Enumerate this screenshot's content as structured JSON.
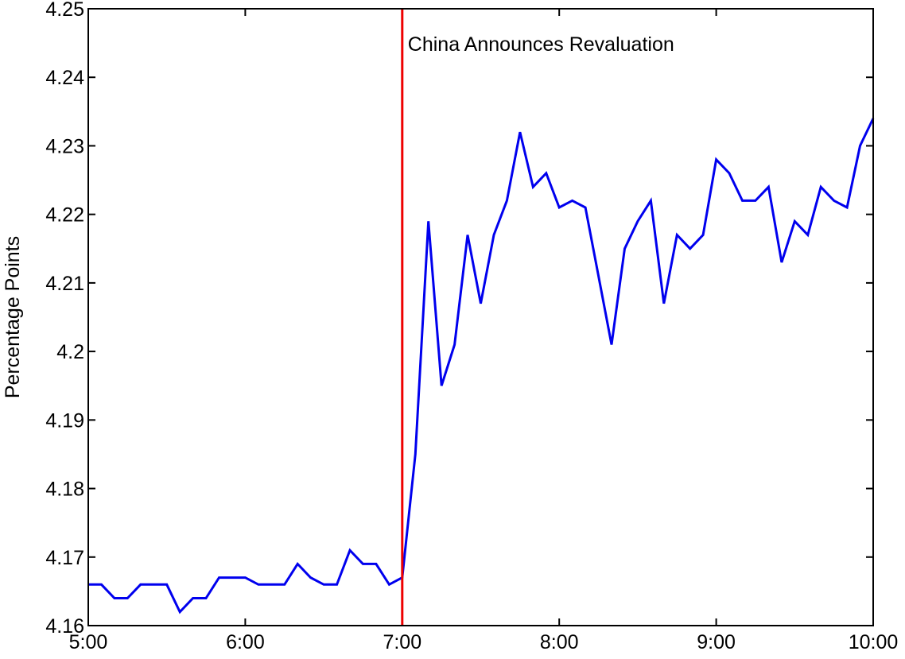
{
  "chart_data": {
    "type": "line",
    "title": "",
    "xlabel": "",
    "ylabel": "Percentage Points",
    "xlim": [
      "5:00",
      "10:00"
    ],
    "ylim": [
      4.16,
      4.25
    ],
    "grid": false,
    "x_tick_labels": [
      "5:00",
      "6:00",
      "7:00",
      "8:00",
      "9:00",
      "10:00"
    ],
    "y_tick_labels": [
      "4.16",
      "4.17",
      "4.18",
      "4.19",
      "4.2",
      "4.21",
      "4.22",
      "4.23",
      "4.24",
      "4.25"
    ],
    "x": [
      "5:00",
      "5:05",
      "5:10",
      "5:15",
      "5:20",
      "5:25",
      "5:30",
      "5:35",
      "5:40",
      "5:45",
      "5:50",
      "5:55",
      "6:00",
      "6:05",
      "6:10",
      "6:15",
      "6:20",
      "6:25",
      "6:30",
      "6:35",
      "6:40",
      "6:45",
      "6:50",
      "6:55",
      "7:00",
      "7:05",
      "7:10",
      "7:15",
      "7:20",
      "7:25",
      "7:30",
      "7:35",
      "7:40",
      "7:45",
      "7:50",
      "7:55",
      "8:00",
      "8:05",
      "8:10",
      "8:15",
      "8:20",
      "8:25",
      "8:30",
      "8:35",
      "8:40",
      "8:45",
      "8:50",
      "8:55",
      "9:00",
      "9:05",
      "9:10",
      "9:15",
      "9:20",
      "9:25",
      "9:30",
      "9:35",
      "9:40",
      "9:45",
      "9:50",
      "9:55",
      "10:00"
    ],
    "series": [
      {
        "color": "#0000ee",
        "values": [
          4.166,
          4.166,
          4.164,
          4.164,
          4.166,
          4.166,
          4.166,
          4.162,
          4.164,
          4.164,
          4.167,
          4.167,
          4.167,
          4.166,
          4.166,
          4.166,
          4.169,
          4.167,
          4.166,
          4.166,
          4.171,
          4.169,
          4.169,
          4.166,
          4.167,
          4.185,
          4.219,
          4.195,
          4.201,
          4.217,
          4.207,
          4.217,
          4.222,
          4.232,
          4.224,
          4.226,
          4.221,
          4.222,
          4.221,
          4.211,
          4.201,
          4.215,
          4.219,
          4.222,
          4.207,
          4.217,
          4.215,
          4.217,
          4.228,
          4.226,
          4.222,
          4.222,
          4.224,
          4.213,
          4.219,
          4.217,
          4.224,
          4.222,
          4.221,
          4.23,
          4.234
        ]
      }
    ],
    "event_line": {
      "x": "7:00",
      "color": "#ee0000",
      "label": "China Announces Revaluation"
    }
  }
}
